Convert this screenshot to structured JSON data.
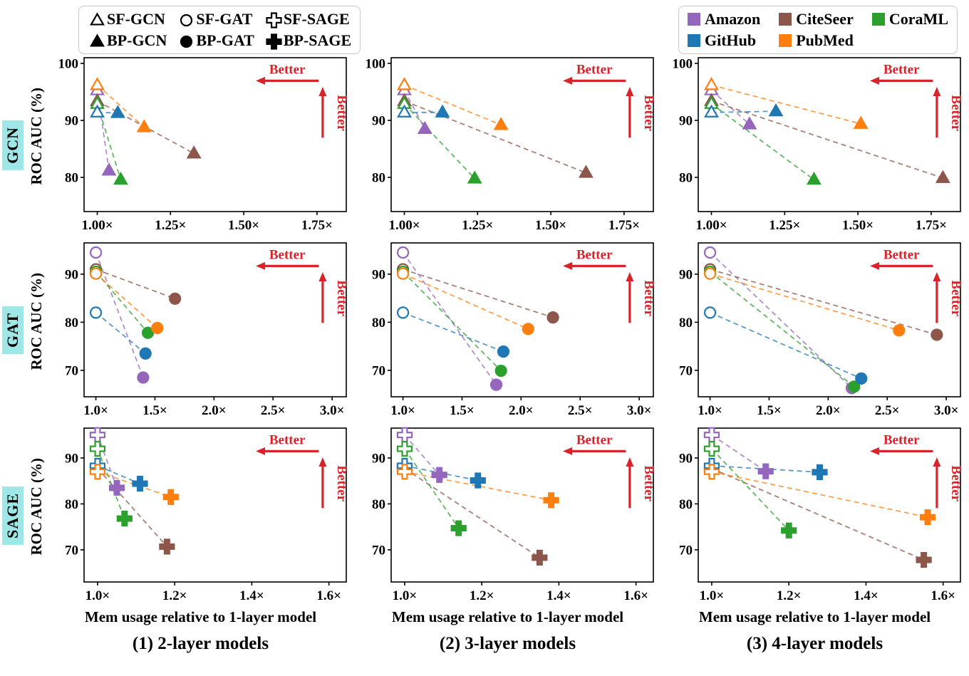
{
  "chart_data": {
    "type": "scatter",
    "xlabel": "Mem usage relative to 1-layer model",
    "ylabel": "ROC AUC (%)",
    "better_label": "Better",
    "better_color": "#d8232a",
    "row_label_bg": "#9fe7e7",
    "datasets": [
      {
        "name": "Amazon",
        "color": "#9467bd"
      },
      {
        "name": "CiteSeer",
        "color": "#8c564b"
      },
      {
        "name": "CoraML",
        "color": "#2ca02c"
      },
      {
        "name": "GitHub",
        "color": "#1f77b4"
      },
      {
        "name": "PubMed",
        "color": "#ff7f0e"
      }
    ],
    "marker_legend": [
      {
        "label": "SF-GCN",
        "marker": "triangle",
        "fill": "open"
      },
      {
        "label": "SF-GAT",
        "marker": "circle",
        "fill": "open"
      },
      {
        "label": "SF-SAGE",
        "marker": "plus",
        "fill": "open"
      },
      {
        "label": "BP-GCN",
        "marker": "triangle",
        "fill": "filled"
      },
      {
        "label": "BP-GAT",
        "marker": "circle",
        "fill": "filled"
      },
      {
        "label": "BP-SAGE",
        "marker": "plus",
        "fill": "filled"
      }
    ],
    "columns": [
      "(1) 2-layer models",
      "(2) 3-layer models",
      "(3) 4-layer models"
    ],
    "rows": [
      {
        "label": "GCN",
        "marker": "triangle",
        "xlim": [
          0.955,
          1.85
        ],
        "xticks": [
          1.0,
          1.25,
          1.5,
          1.75
        ],
        "xtick_labels": [
          "1.00×",
          "1.25×",
          "1.50×",
          "1.75×"
        ],
        "ylim": [
          74,
          101
        ],
        "yticks": [
          80,
          90,
          100
        ],
        "plots": [
          {
            "series": [
              {
                "dataset": "Amazon",
                "sf": [
                  1.0,
                  95.3
                ],
                "bp": [
                  1.04,
                  81.2
                ]
              },
              {
                "dataset": "CiteSeer",
                "sf": [
                  1.0,
                  93.4
                ],
                "bp": [
                  1.33,
                  84.2
                ]
              },
              {
                "dataset": "CoraML",
                "sf": [
                  1.0,
                  92.9
                ],
                "bp": [
                  1.08,
                  79.6
                ]
              },
              {
                "dataset": "GitHub",
                "sf": [
                  1.0,
                  91.4
                ],
                "bp": [
                  1.07,
                  91.3
                ]
              },
              {
                "dataset": "PubMed",
                "sf": [
                  1.0,
                  96.2
                ],
                "bp": [
                  1.16,
                  88.8
                ]
              }
            ]
          },
          {
            "series": [
              {
                "dataset": "Amazon",
                "sf": [
                  1.0,
                  95.3
                ],
                "bp": [
                  1.07,
                  88.5
                ]
              },
              {
                "dataset": "CiteSeer",
                "sf": [
                  1.0,
                  93.4
                ],
                "bp": [
                  1.62,
                  80.8
                ]
              },
              {
                "dataset": "CoraML",
                "sf": [
                  1.0,
                  92.9
                ],
                "bp": [
                  1.24,
                  79.8
                ]
              },
              {
                "dataset": "GitHub",
                "sf": [
                  1.0,
                  91.4
                ],
                "bp": [
                  1.13,
                  91.4
                ]
              },
              {
                "dataset": "PubMed",
                "sf": [
                  1.0,
                  96.2
                ],
                "bp": [
                  1.33,
                  89.2
                ]
              }
            ]
          },
          {
            "series": [
              {
                "dataset": "Amazon",
                "sf": [
                  1.0,
                  95.3
                ],
                "bp": [
                  1.13,
                  89.3
                ]
              },
              {
                "dataset": "CiteSeer",
                "sf": [
                  1.0,
                  93.4
                ],
                "bp": [
                  1.79,
                  79.9
                ]
              },
              {
                "dataset": "CoraML",
                "sf": [
                  1.0,
                  92.9
                ],
                "bp": [
                  1.35,
                  79.6
                ]
              },
              {
                "dataset": "GitHub",
                "sf": [
                  1.0,
                  91.4
                ],
                "bp": [
                  1.22,
                  91.6
                ]
              },
              {
                "dataset": "PubMed",
                "sf": [
                  1.0,
                  96.2
                ],
                "bp": [
                  1.51,
                  89.4
                ]
              }
            ]
          }
        ]
      },
      {
        "label": "GAT",
        "marker": "circle",
        "xlim": [
          0.9,
          3.12
        ],
        "xticks": [
          1.0,
          1.5,
          2.0,
          2.5,
          3.0
        ],
        "xtick_labels": [
          "1.0×",
          "1.5×",
          "2.0×",
          "2.5×",
          "3.0×"
        ],
        "ylim": [
          64.5,
          96.5
        ],
        "yticks": [
          70,
          80,
          90
        ],
        "plots": [
          {
            "series": [
              {
                "dataset": "Amazon",
                "sf": [
                  1.0,
                  94.5
                ],
                "bp": [
                  1.4,
                  68.5
                ]
              },
              {
                "dataset": "CiteSeer",
                "sf": [
                  1.0,
                  91.0
                ],
                "bp": [
                  1.67,
                  84.9
                ]
              },
              {
                "dataset": "CoraML",
                "sf": [
                  1.0,
                  90.5
                ],
                "bp": [
                  1.44,
                  77.8
                ]
              },
              {
                "dataset": "GitHub",
                "sf": [
                  1.0,
                  82.0
                ],
                "bp": [
                  1.42,
                  73.5
                ]
              },
              {
                "dataset": "PubMed",
                "sf": [
                  1.0,
                  90.1
                ],
                "bp": [
                  1.52,
                  78.8
                ]
              }
            ]
          },
          {
            "series": [
              {
                "dataset": "Amazon",
                "sf": [
                  1.0,
                  94.5
                ],
                "bp": [
                  1.79,
                  67.0
                ]
              },
              {
                "dataset": "CiteSeer",
                "sf": [
                  1.0,
                  91.0
                ],
                "bp": [
                  2.27,
                  81.0
                ]
              },
              {
                "dataset": "CoraML",
                "sf": [
                  1.0,
                  90.5
                ],
                "bp": [
                  1.83,
                  69.9
                ]
              },
              {
                "dataset": "GitHub",
                "sf": [
                  1.0,
                  82.0
                ],
                "bp": [
                  1.85,
                  73.9
                ]
              },
              {
                "dataset": "PubMed",
                "sf": [
                  1.0,
                  90.1
                ],
                "bp": [
                  2.06,
                  78.6
                ]
              }
            ]
          },
          {
            "series": [
              {
                "dataset": "Amazon",
                "sf": [
                  1.0,
                  94.5
                ],
                "bp": [
                  2.2,
                  66.3
                ]
              },
              {
                "dataset": "CiteSeer",
                "sf": [
                  1.0,
                  91.0
                ],
                "bp": [
                  2.92,
                  77.4
                ]
              },
              {
                "dataset": "CoraML",
                "sf": [
                  1.0,
                  90.5
                ],
                "bp": [
                  2.22,
                  66.6
                ]
              },
              {
                "dataset": "GitHub",
                "sf": [
                  1.0,
                  82.0
                ],
                "bp": [
                  2.28,
                  68.3
                ]
              },
              {
                "dataset": "PubMed",
                "sf": [
                  1.0,
                  90.1
                ],
                "bp": [
                  2.6,
                  78.3
                ]
              }
            ]
          }
        ]
      },
      {
        "label": "SAGE",
        "marker": "plus",
        "xlim": [
          0.965,
          1.645
        ],
        "xticks": [
          1.0,
          1.2,
          1.4,
          1.6
        ],
        "xtick_labels": [
          "1.0×",
          "1.2×",
          "1.4×",
          "1.6×"
        ],
        "ylim": [
          63,
          96.5
        ],
        "yticks": [
          70,
          80,
          90
        ],
        "plots": [
          {
            "series": [
              {
                "dataset": "Amazon",
                "sf": [
                  1.0,
                  95.0
                ],
                "bp": [
                  1.05,
                  83.5
                ]
              },
              {
                "dataset": "CiteSeer",
                "sf": [
                  1.0,
                  87.7
                ],
                "bp": [
                  1.18,
                  70.7
                ]
              },
              {
                "dataset": "CoraML",
                "sf": [
                  1.0,
                  92.0
                ],
                "bp": [
                  1.07,
                  76.8
                ]
              },
              {
                "dataset": "GitHub",
                "sf": [
                  1.0,
                  88.3
                ],
                "bp": [
                  1.11,
                  84.4
                ]
              },
              {
                "dataset": "PubMed",
                "sf": [
                  1.0,
                  87.0
                ],
                "bp": [
                  1.19,
                  81.5
                ]
              }
            ]
          },
          {
            "series": [
              {
                "dataset": "Amazon",
                "sf": [
                  1.0,
                  95.0
                ],
                "bp": [
                  1.09,
                  86.3
                ]
              },
              {
                "dataset": "CiteSeer",
                "sf": [
                  1.0,
                  87.7
                ],
                "bp": [
                  1.35,
                  68.3
                ]
              },
              {
                "dataset": "CoraML",
                "sf": [
                  1.0,
                  92.0
                ],
                "bp": [
                  1.14,
                  74.7
                ]
              },
              {
                "dataset": "GitHub",
                "sf": [
                  1.0,
                  88.3
                ],
                "bp": [
                  1.19,
                  85.1
                ]
              },
              {
                "dataset": "PubMed",
                "sf": [
                  1.0,
                  87.0
                ],
                "bp": [
                  1.38,
                  80.8
                ]
              }
            ]
          },
          {
            "series": [
              {
                "dataset": "Amazon",
                "sf": [
                  1.0,
                  95.0
                ],
                "bp": [
                  1.14,
                  87.1
                ]
              },
              {
                "dataset": "CiteSeer",
                "sf": [
                  1.0,
                  87.7
                ],
                "bp": [
                  1.55,
                  67.8
                ]
              },
              {
                "dataset": "CoraML",
                "sf": [
                  1.0,
                  92.0
                ],
                "bp": [
                  1.2,
                  74.2
                ]
              },
              {
                "dataset": "GitHub",
                "sf": [
                  1.0,
                  88.3
                ],
                "bp": [
                  1.28,
                  86.9
                ]
              },
              {
                "dataset": "PubMed",
                "sf": [
                  1.0,
                  87.0
                ],
                "bp": [
                  1.56,
                  77.1
                ]
              }
            ]
          }
        ]
      }
    ]
  }
}
